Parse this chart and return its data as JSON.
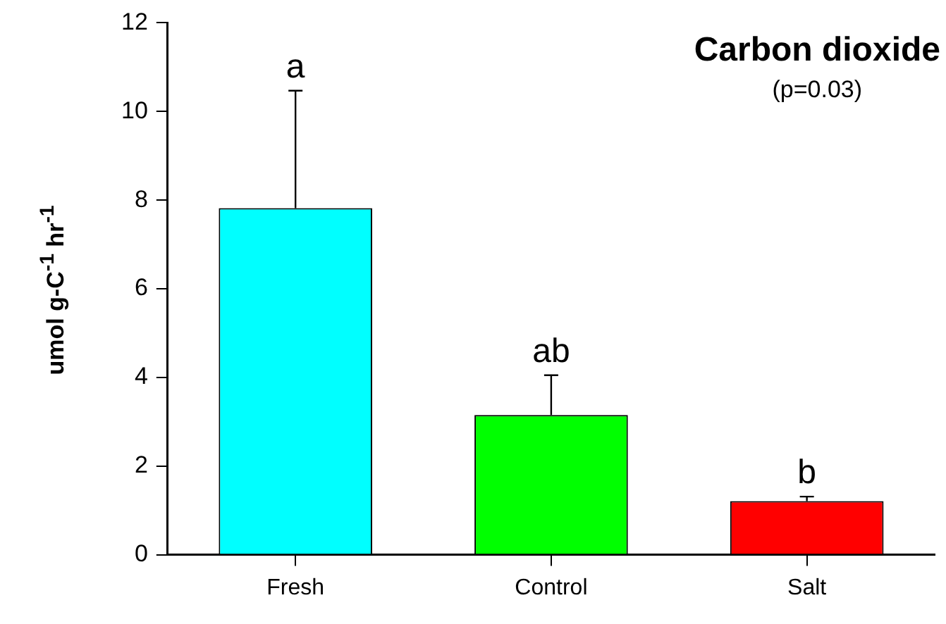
{
  "chart_data": {
    "type": "bar",
    "title": "Carbon dioxide",
    "subtitle": "(p=0.03)",
    "ylabel": "umol g-C$^{-1}$ hr$^{-1}$",
    "categories": [
      "Fresh",
      "Control",
      "Salt"
    ],
    "values": [
      7.82,
      3.15,
      1.21
    ],
    "colors": [
      "#00ffff",
      "#00ff00",
      "#ff0000"
    ],
    "errors": [
      [
        7.82,
        10.47
      ],
      [
        3.15,
        4.05
      ],
      [
        1.21,
        1.31
      ]
    ],
    "ylim": [
      0,
      12
    ],
    "yticks": [
      0,
      2,
      4,
      6,
      8,
      10,
      12
    ],
    "grid": false,
    "legend": false,
    "annotations": [
      "a",
      "ab",
      "b"
    ]
  }
}
